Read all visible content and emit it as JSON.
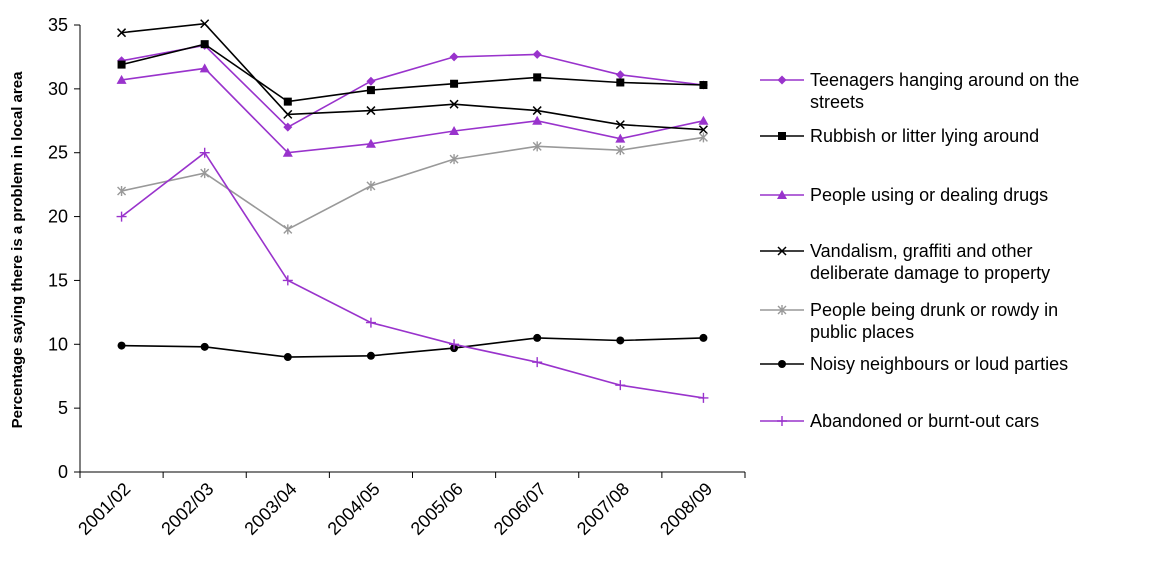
{
  "chart_data": {
    "type": "line",
    "title": "",
    "xlabel": "",
    "ylabel": "Percentage saying there is a problem in local area",
    "ylim": [
      0,
      35
    ],
    "yticks": [
      0,
      5,
      10,
      15,
      20,
      25,
      30,
      35
    ],
    "grid": false,
    "legend_position": "right",
    "categories": [
      "2001/02",
      "2002/03",
      "2003/04",
      "2004/05",
      "2005/06",
      "2006/07",
      "2007/08",
      "2008/09"
    ],
    "series": [
      {
        "name": "Teenagers hanging around on the streets",
        "legend_lines": [
          "Teenagers hanging around on the",
          "streets"
        ],
        "color": "#9933cc",
        "marker": "diamond",
        "values": [
          32.2,
          33.4,
          27.0,
          30.6,
          32.5,
          32.7,
          31.1,
          30.3
        ]
      },
      {
        "name": "Rubbish or litter lying around",
        "legend_lines": [
          "Rubbish or litter lying around"
        ],
        "color": "#000000",
        "marker": "square",
        "values": [
          31.9,
          33.5,
          29.0,
          29.9,
          30.4,
          30.9,
          30.5,
          30.3
        ]
      },
      {
        "name": "People using or dealing drugs",
        "legend_lines": [
          "People using or dealing drugs"
        ],
        "color": "#9933cc",
        "marker": "triangle",
        "values": [
          30.7,
          31.6,
          25.0,
          25.7,
          26.7,
          27.5,
          26.1,
          27.5
        ]
      },
      {
        "name": "Vandalism, graffiti and other deliberate damage to property",
        "legend_lines": [
          "Vandalism, graffiti and other",
          "deliberate damage to property"
        ],
        "color": "#000000",
        "marker": "x",
        "values": [
          34.4,
          35.1,
          28.0,
          28.3,
          28.8,
          28.3,
          27.2,
          26.8
        ]
      },
      {
        "name": "People being drunk or rowdy in public places",
        "legend_lines": [
          "People being drunk or rowdy in",
          "public places"
        ],
        "color": "#999999",
        "marker": "asterisk",
        "values": [
          22.0,
          23.4,
          19.0,
          22.4,
          24.5,
          25.5,
          25.2,
          26.2
        ]
      },
      {
        "name": "Noisy neighbours or loud parties",
        "legend_lines": [
          "Noisy neighbours or loud parties"
        ],
        "color": "#000000",
        "marker": "circle",
        "values": [
          9.9,
          9.8,
          9.0,
          9.1,
          9.7,
          10.5,
          10.3,
          10.5
        ]
      },
      {
        "name": "Abandoned or burnt-out cars",
        "legend_lines": [
          "Abandoned or burnt-out cars"
        ],
        "color": "#9933cc",
        "marker": "plus",
        "values": [
          20.0,
          25.0,
          15.0,
          11.7,
          10.0,
          8.6,
          6.8,
          5.8
        ]
      }
    ]
  }
}
